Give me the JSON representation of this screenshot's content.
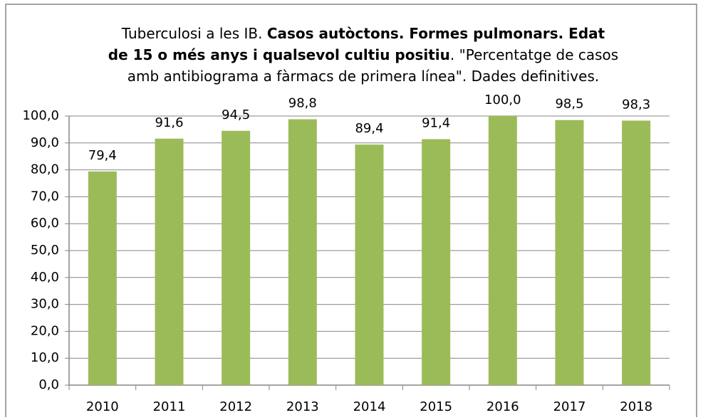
{
  "chart_data": {
    "type": "bar",
    "title": [
      [
        {
          "text": "Tuberculosi a les IB. ",
          "bold": false
        },
        {
          "text": "Casos autòctons.  Formes pulmonars.  Edat",
          "bold": true
        }
      ],
      [
        {
          "text": "de 15 o més anys i qualsevol cultiu positiu",
          "bold": true
        },
        {
          "text": ". \"Percentatge de casos",
          "bold": false
        }
      ],
      [
        {
          "text": "amb antibiograma  a fàrmacs de primera  línea\". Dades definitives.",
          "bold": false
        }
      ]
    ],
    "categories": [
      "2010",
      "2011",
      "2012",
      "2013",
      "2014",
      "2015",
      "2016",
      "2017",
      "2018"
    ],
    "values": [
      79.4,
      91.6,
      94.5,
      98.8,
      89.4,
      91.4,
      100.0,
      98.5,
      98.3
    ],
    "value_labels": [
      "79,4",
      "91,6",
      "94,5",
      "98,8",
      "89,4",
      "91,4",
      "100,0",
      "98,5",
      "98,3"
    ],
    "color": "#9bbb59",
    "ylim": [
      0,
      100
    ],
    "yticks": [
      {
        "value": 0,
        "label": "0,0"
      },
      {
        "value": 10,
        "label": "10,0"
      },
      {
        "value": 20,
        "label": "20,0"
      },
      {
        "value": 30,
        "label": "30,0"
      },
      {
        "value": 40,
        "label": "40,0"
      },
      {
        "value": 50,
        "label": "50,0"
      },
      {
        "value": 60,
        "label": "60,0"
      },
      {
        "value": 70,
        "label": "70,0"
      },
      {
        "value": 80,
        "label": "80,0"
      },
      {
        "value": 90,
        "label": "90,0"
      },
      {
        "value": 100,
        "label": "100,0"
      }
    ],
    "grid": true
  }
}
